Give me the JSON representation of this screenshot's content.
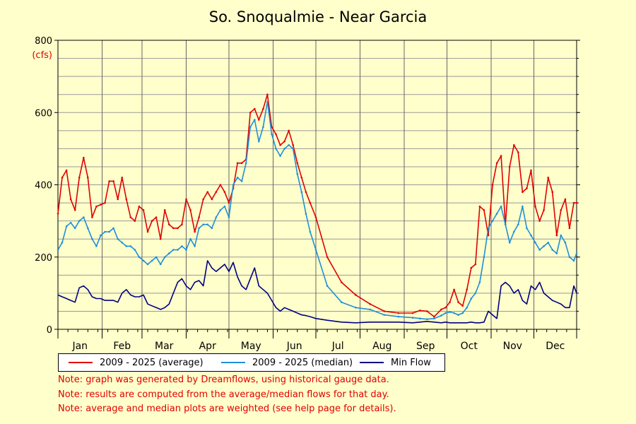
{
  "chart_data": {
    "type": "line",
    "title": "So. Snoqualmie - Near Garcia",
    "ylabel": "(cfs)",
    "xlabel": "",
    "ylim": [
      0,
      800
    ],
    "yticks": [
      "0",
      "200",
      "400",
      "600",
      "800"
    ],
    "x_tick_labels": [
      "Jan",
      "Feb",
      "Mar",
      "Apr",
      "May",
      "Jun",
      "Jul",
      "Aug",
      "Sep",
      "Oct",
      "Nov",
      "Dec"
    ],
    "xlim_day": [
      1,
      365
    ],
    "x_day": [
      1,
      4,
      7,
      10,
      13,
      16,
      19,
      22,
      25,
      28,
      31,
      34,
      37,
      40,
      43,
      46,
      49,
      52,
      55,
      58,
      61,
      64,
      67,
      70,
      73,
      76,
      79,
      82,
      85,
      88,
      91,
      94,
      97,
      100,
      103,
      106,
      109,
      112,
      115,
      118,
      121,
      124,
      127,
      130,
      133,
      136,
      139,
      142,
      145,
      148,
      151,
      154,
      157,
      160,
      163,
      166,
      169,
      172,
      175,
      178,
      182,
      190,
      200,
      210,
      220,
      230,
      240,
      250,
      255,
      260,
      265,
      270,
      273,
      276,
      279,
      282,
      285,
      288,
      291,
      294,
      297,
      300,
      303,
      306,
      309,
      312,
      315,
      318,
      321,
      324,
      327,
      330,
      333,
      336,
      339,
      342,
      345,
      348,
      351,
      354,
      357,
      360,
      363,
      365
    ],
    "grid": true,
    "legend_position": "bottom",
    "series": [
      {
        "name": "2009 - 2025 (average)",
        "color": "#e00000",
        "values": [
          320,
          420,
          440,
          360,
          330,
          420,
          475,
          420,
          310,
          340,
          345,
          350,
          410,
          410,
          360,
          420,
          360,
          310,
          300,
          340,
          330,
          270,
          300,
          310,
          250,
          330,
          290,
          280,
          280,
          290,
          360,
          330,
          270,
          310,
          360,
          380,
          360,
          380,
          400,
          380,
          350,
          390,
          460,
          460,
          470,
          600,
          610,
          580,
          610,
          650,
          560,
          540,
          510,
          520,
          550,
          510,
          460,
          420,
          380,
          350,
          310,
          200,
          130,
          95,
          70,
          50,
          45,
          45,
          52,
          50,
          35,
          55,
          60,
          75,
          110,
          75,
          65,
          110,
          170,
          180,
          340,
          330,
          260,
          400,
          460,
          480,
          290,
          450,
          510,
          490,
          380,
          390,
          440,
          340,
          300,
          330,
          420,
          380,
          260,
          330,
          360,
          280,
          350,
          350
        ]
      },
      {
        "name": "2009 - 2025 (median)",
        "color": "#1e8fd8",
        "values": [
          220,
          240,
          285,
          295,
          280,
          300,
          310,
          280,
          250,
          230,
          260,
          270,
          270,
          280,
          250,
          240,
          230,
          230,
          220,
          200,
          190,
          180,
          190,
          200,
          180,
          200,
          210,
          220,
          220,
          230,
          220,
          250,
          230,
          280,
          290,
          290,
          280,
          310,
          330,
          340,
          310,
          400,
          420,
          410,
          460,
          560,
          580,
          520,
          560,
          630,
          540,
          500,
          480,
          500,
          510,
          500,
          430,
          380,
          320,
          270,
          220,
          120,
          75,
          60,
          55,
          40,
          35,
          32,
          30,
          28,
          30,
          38,
          45,
          48,
          45,
          40,
          45,
          60,
          85,
          100,
          130,
          200,
          280,
          300,
          320,
          340,
          290,
          240,
          270,
          290,
          340,
          280,
          260,
          240,
          220,
          230,
          240,
          220,
          210,
          260,
          240,
          200,
          190,
          210
        ]
      },
      {
        "name": "Min Flow",
        "color": "#000080",
        "values": [
          95,
          90,
          85,
          80,
          75,
          115,
          120,
          110,
          90,
          85,
          85,
          80,
          80,
          80,
          75,
          100,
          110,
          95,
          90,
          90,
          95,
          70,
          65,
          60,
          55,
          60,
          70,
          100,
          130,
          140,
          120,
          110,
          130,
          135,
          120,
          190,
          170,
          160,
          170,
          180,
          160,
          185,
          145,
          120,
          110,
          140,
          170,
          120,
          110,
          100,
          80,
          60,
          50,
          60,
          55,
          50,
          45,
          40,
          38,
          35,
          30,
          25,
          20,
          18,
          20,
          20,
          20,
          18,
          20,
          22,
          20,
          18,
          20,
          18,
          18,
          18,
          18,
          18,
          20,
          18,
          18,
          20,
          50,
          40,
          30,
          120,
          130,
          120,
          100,
          110,
          80,
          70,
          120,
          110,
          130,
          100,
          90,
          80,
          75,
          70,
          60,
          60,
          120,
          100
        ]
      }
    ]
  },
  "notes": [
    "Note: graph was generated by Dreamflows, using historical gauge data.",
    "Note: results are computed from the average/median flows for that day.",
    "Note: average and median plots are weighted (see help page for details)."
  ]
}
